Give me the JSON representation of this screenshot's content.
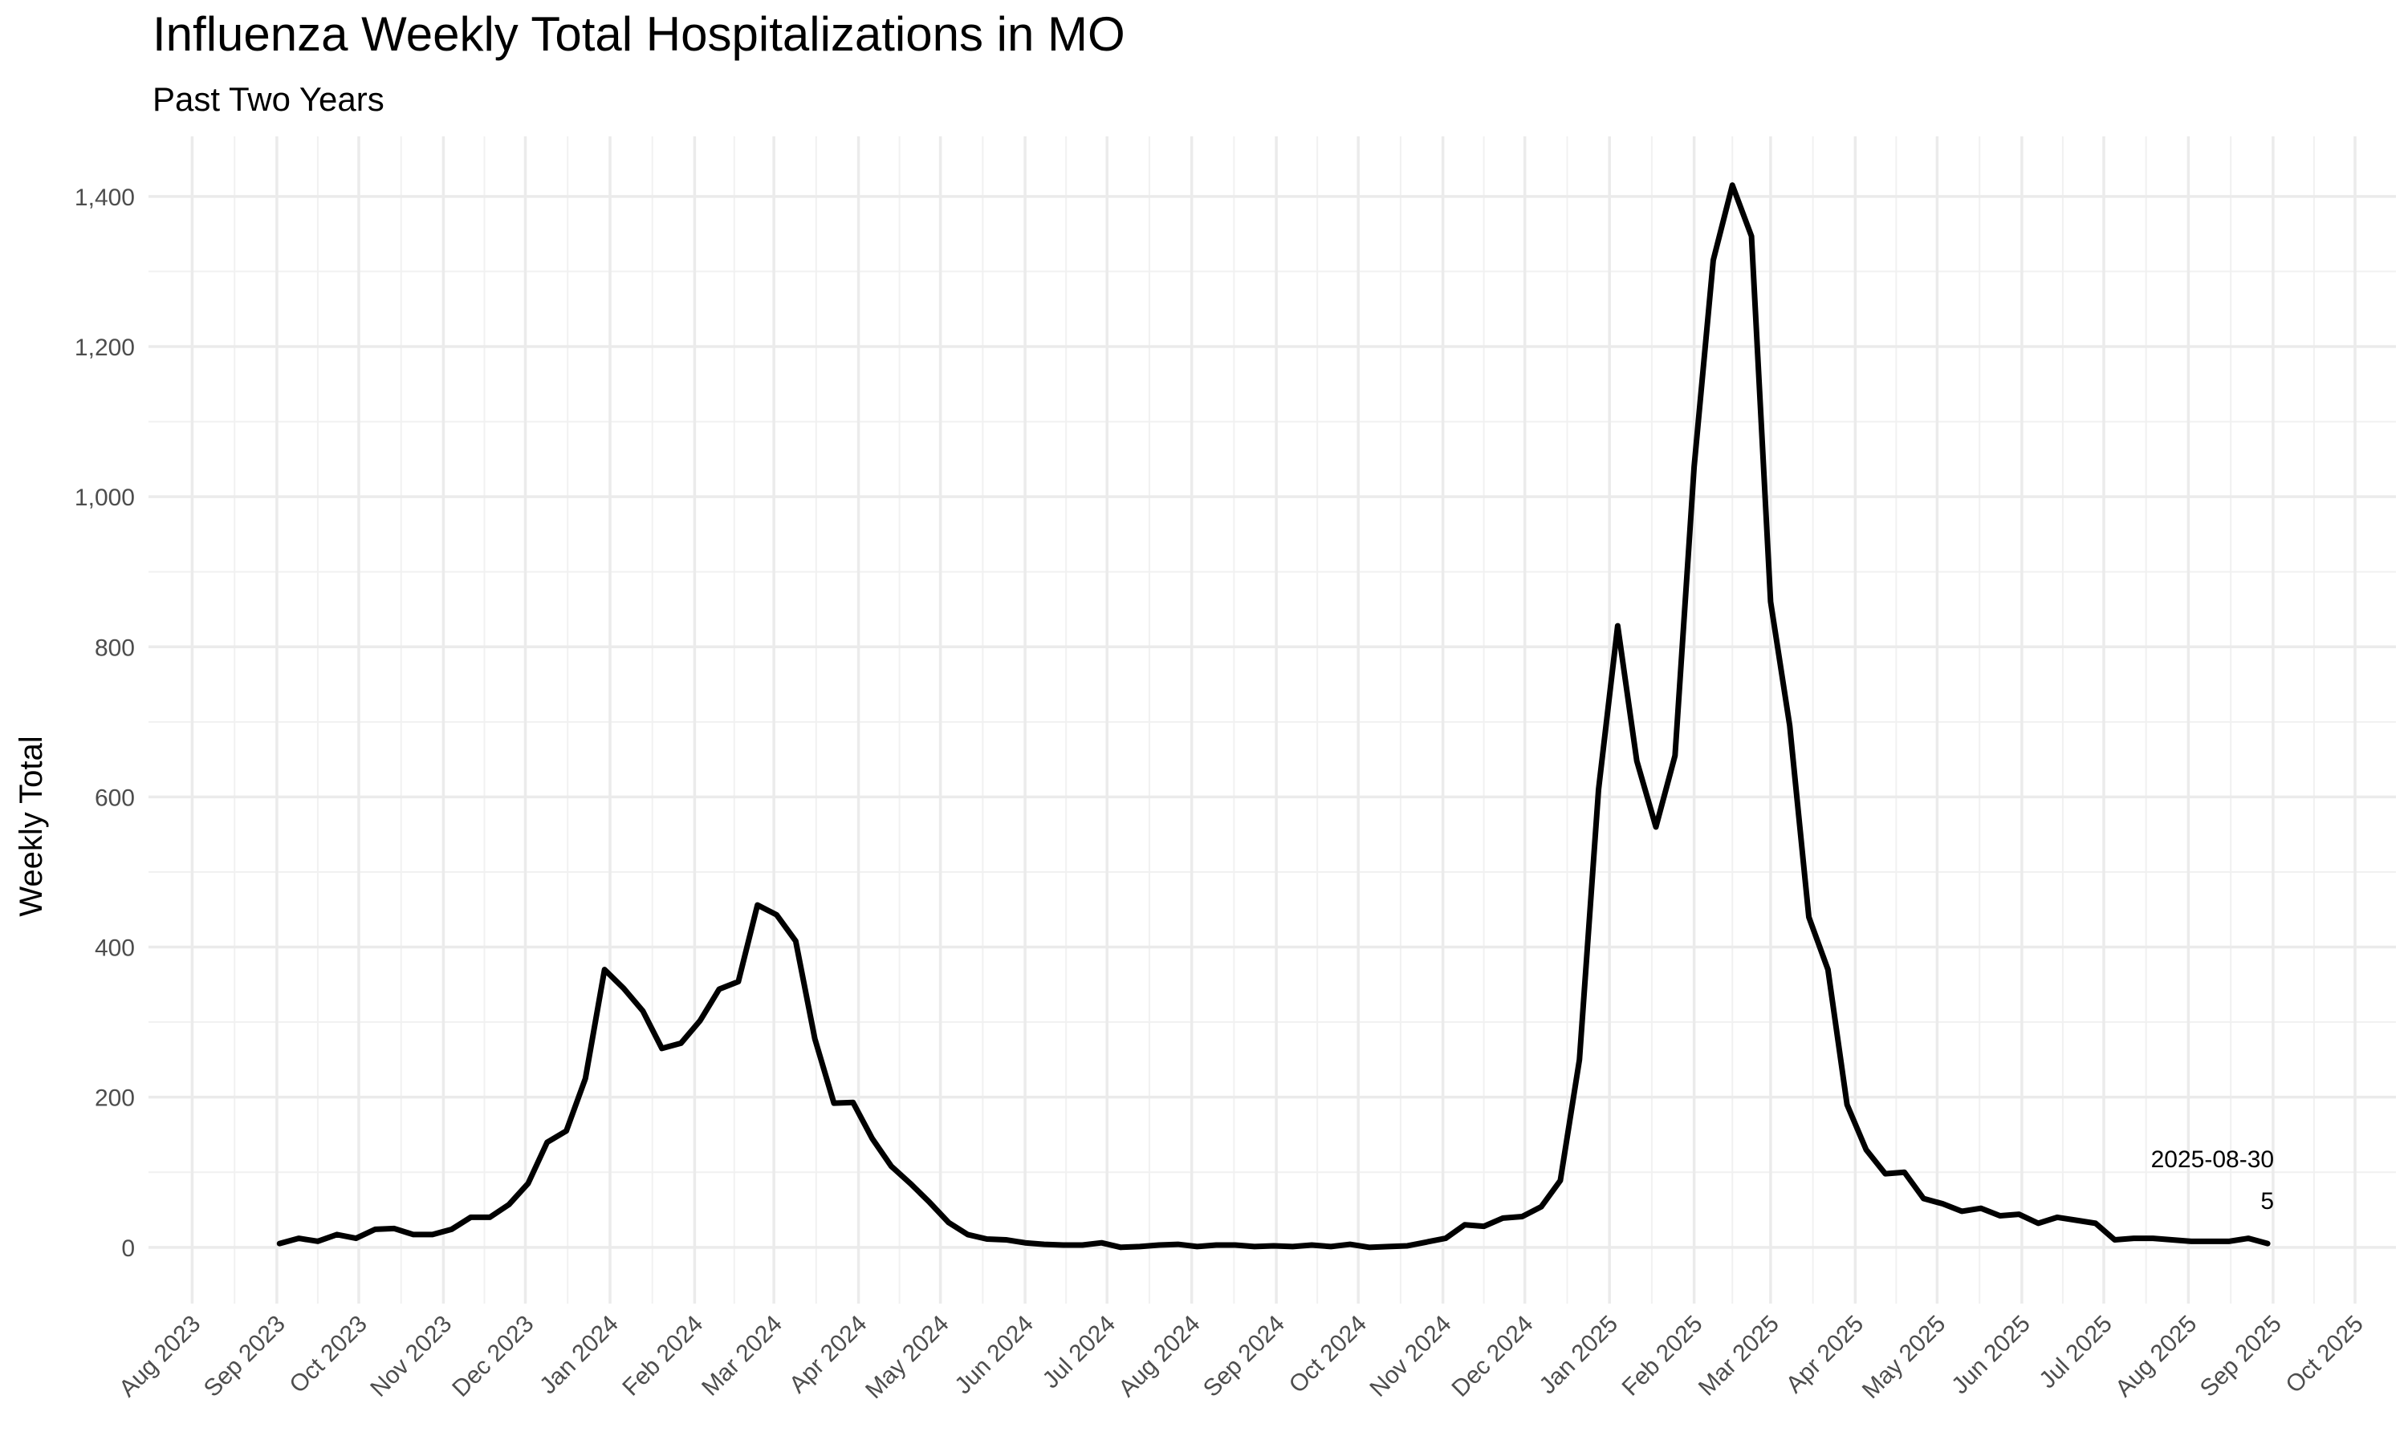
{
  "chart_data": {
    "type": "line",
    "title": "Influenza Weekly Total Hospitalizations in MO",
    "subtitle": "Past Two Years",
    "xlabel": "",
    "ylabel": "Weekly Total",
    "ylim": [
      -75,
      1480
    ],
    "xlim": [
      "2023-07-16",
      "2025-10-16"
    ],
    "grid": true,
    "y_ticks": [
      0,
      200,
      400,
      600,
      800,
      1000,
      1200,
      1400
    ],
    "y_tick_labels": [
      "0",
      "200",
      "400",
      "600",
      "800",
      "1,000",
      "1,200",
      "1,400"
    ],
    "x_ticks": [
      "2023-08-01",
      "2023-09-01",
      "2023-10-01",
      "2023-11-01",
      "2023-12-01",
      "2024-01-01",
      "2024-02-01",
      "2024-03-01",
      "2024-04-01",
      "2024-05-01",
      "2024-06-01",
      "2024-07-01",
      "2024-08-01",
      "2024-09-01",
      "2024-10-01",
      "2024-11-01",
      "2024-12-01",
      "2025-01-01",
      "2025-02-01",
      "2025-03-01",
      "2025-04-01",
      "2025-05-01",
      "2025-06-01",
      "2025-07-01",
      "2025-08-01",
      "2025-09-01",
      "2025-10-01"
    ],
    "x_tick_labels": [
      "Aug 2023",
      "Sep 2023",
      "Oct 2023",
      "Nov 2023",
      "Dec 2023",
      "Jan 2024",
      "Feb 2024",
      "Mar 2024",
      "Apr 2024",
      "May 2024",
      "Jun 2024",
      "Jul 2024",
      "Aug 2024",
      "Sep 2024",
      "Oct 2024",
      "Nov 2024",
      "Dec 2024",
      "Jan 2025",
      "Feb 2025",
      "Mar 2025",
      "Apr 2025",
      "May 2025",
      "Jun 2025",
      "Jul 2025",
      "Aug 2025",
      "Sep 2025",
      "Oct 2025"
    ],
    "series": [
      {
        "color": "#000000",
        "x": [
          "2023-09-02",
          "2023-09-09",
          "2023-09-16",
          "2023-09-23",
          "2023-09-30",
          "2023-10-07",
          "2023-10-14",
          "2023-10-21",
          "2023-10-28",
          "2023-11-04",
          "2023-11-11",
          "2023-11-18",
          "2023-11-25",
          "2023-12-02",
          "2023-12-09",
          "2023-12-16",
          "2023-12-23",
          "2023-12-30",
          "2024-01-06",
          "2024-01-13",
          "2024-01-20",
          "2024-01-27",
          "2024-02-03",
          "2024-02-10",
          "2024-02-17",
          "2024-02-24",
          "2024-03-02",
          "2024-03-09",
          "2024-03-16",
          "2024-03-23",
          "2024-03-30",
          "2024-04-06",
          "2024-04-13",
          "2024-04-20",
          "2024-04-27",
          "2024-05-04",
          "2024-05-11",
          "2024-05-18",
          "2024-05-25",
          "2024-06-01",
          "2024-06-08",
          "2024-06-15",
          "2024-06-22",
          "2024-06-29",
          "2024-07-06",
          "2024-07-13",
          "2024-07-20",
          "2024-07-27",
          "2024-08-03",
          "2024-08-10",
          "2024-08-17",
          "2024-08-24",
          "2024-08-31",
          "2024-09-07",
          "2024-09-14",
          "2024-09-21",
          "2024-09-28",
          "2024-10-05",
          "2024-10-12",
          "2024-10-19",
          "2024-10-26",
          "2024-11-02",
          "2024-11-09",
          "2024-11-16",
          "2024-11-23",
          "2024-11-30",
          "2024-12-07",
          "2024-12-14",
          "2024-12-21",
          "2024-12-28",
          "2025-01-04",
          "2025-01-11",
          "2025-01-18",
          "2025-01-25",
          "2025-02-01",
          "2025-02-08",
          "2025-02-15",
          "2025-02-22",
          "2025-03-01",
          "2025-03-08",
          "2025-03-15",
          "2025-03-22",
          "2025-03-29",
          "2025-04-05",
          "2025-04-12",
          "2025-04-19",
          "2025-04-26",
          "2025-05-03",
          "2025-05-10",
          "2025-05-17",
          "2025-05-24",
          "2025-05-31",
          "2025-06-07",
          "2025-06-14",
          "2025-06-21",
          "2025-06-28",
          "2025-07-05",
          "2025-07-12",
          "2025-07-19",
          "2025-07-26",
          "2025-08-02",
          "2025-08-09",
          "2025-08-16",
          "2025-08-23",
          "2025-08-30"
        ],
        "values": [
          5,
          12,
          8,
          17,
          12,
          24,
          25,
          17,
          17,
          24,
          40,
          40,
          57,
          85,
          140,
          155,
          225,
          370,
          345,
          315,
          265,
          272,
          302,
          344,
          354,
          456,
          443,
          408,
          278,
          192,
          193,
          145,
          108,
          85,
          60,
          33,
          17,
          11,
          10,
          6,
          4,
          3,
          3,
          6,
          0,
          1,
          3,
          4,
          1,
          3,
          3,
          1,
          2,
          1,
          3,
          1,
          4,
          0,
          1,
          2,
          7,
          12,
          30,
          28,
          39,
          41,
          54,
          89,
          250,
          610,
          828,
          648,
          560,
          655,
          1040,
          1315,
          1415,
          1347,
          860,
          695,
          440,
          370,
          190,
          130,
          98,
          100,
          65,
          58,
          48,
          52,
          42,
          44,
          32,
          40,
          36,
          32,
          10,
          12,
          12,
          10,
          8,
          8,
          8,
          12,
          5
        ]
      }
    ],
    "annotations": [
      {
        "x": "2025-08-30",
        "y": 5,
        "date_text": "2025-08-30",
        "value_text": "5"
      }
    ]
  }
}
